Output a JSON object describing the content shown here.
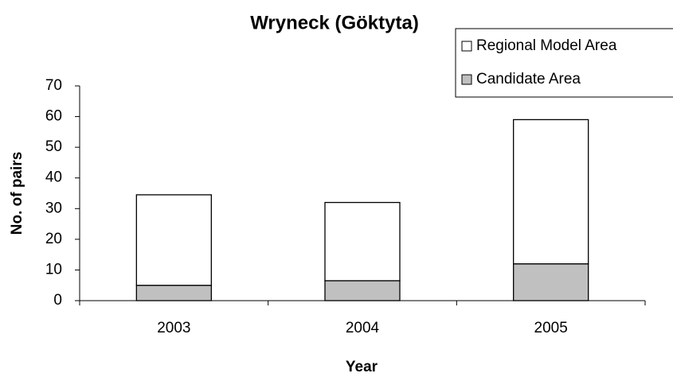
{
  "chart_data": {
    "type": "stacked_bar",
    "title": "Wryneck (Göktyta)",
    "x_label": "Year",
    "y_label": "No. of pairs",
    "categories": [
      "2003",
      "2004",
      "2005"
    ],
    "series": [
      {
        "name": "Regional Model Area",
        "color": "#ffffff",
        "values": [
          29.5,
          25.5,
          47
        ]
      },
      {
        "name": "Candidate Area",
        "color": "#c0c0c0",
        "values": [
          5,
          6.5,
          12
        ]
      }
    ],
    "ylim": [
      0,
      70
    ],
    "yticks": [
      0,
      10,
      20,
      30,
      40,
      50,
      60,
      70
    ],
    "legend": "top-right"
  }
}
